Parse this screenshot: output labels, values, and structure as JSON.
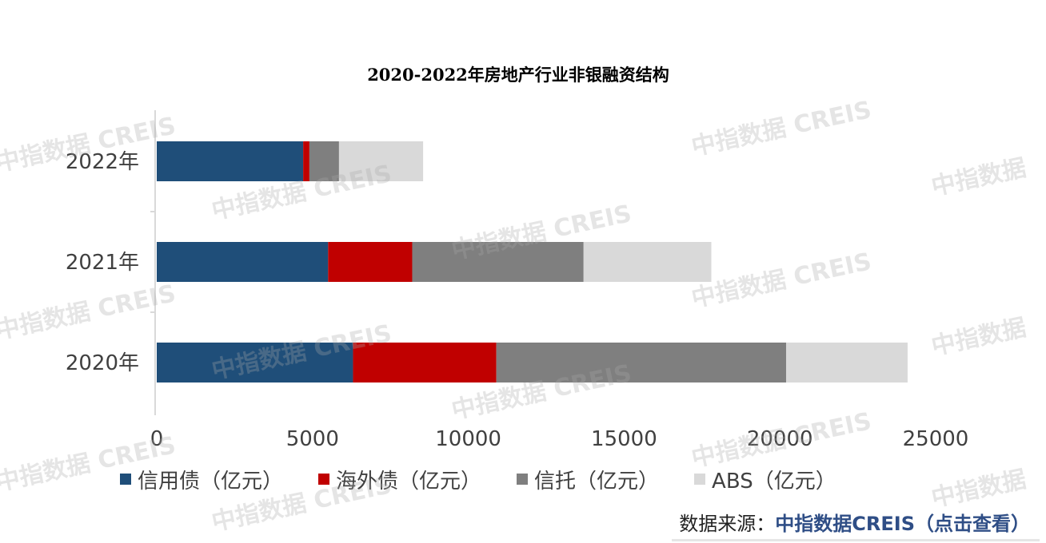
{
  "chart_data": {
    "type": "bar",
    "orientation": "horizontal",
    "stacked": true,
    "title": "2020-2022年房地产行业非银融资结构",
    "categories": [
      "2022年",
      "2021年",
      "2020年"
    ],
    "series": [
      {
        "name": "信用债（亿元）",
        "color": "#1f4e79",
        "values": [
          4700,
          5500,
          6300
        ]
      },
      {
        "name": "海外债（亿元）",
        "color": "#c00000",
        "values": [
          200,
          2700,
          4600
        ]
      },
      {
        "name": "信托（亿元）",
        "color": "#7f7f7f",
        "values": [
          950,
          5500,
          9300
        ]
      },
      {
        "name": "ABS（亿元）",
        "color": "#d9d9d9",
        "values": [
          2700,
          4100,
          3900
        ]
      }
    ],
    "xlim": [
      0,
      25000
    ],
    "xticks": [
      "0",
      "5000",
      "10000",
      "15000",
      "20000",
      "25000"
    ],
    "grid": false,
    "legend_position": "bottom"
  },
  "watermark": {
    "text_full": "中指数据 CREIS",
    "text_short": "中指数据"
  },
  "footer": {
    "label": "数据来源：",
    "link": "中指数据CREIS（点击查看）"
  }
}
